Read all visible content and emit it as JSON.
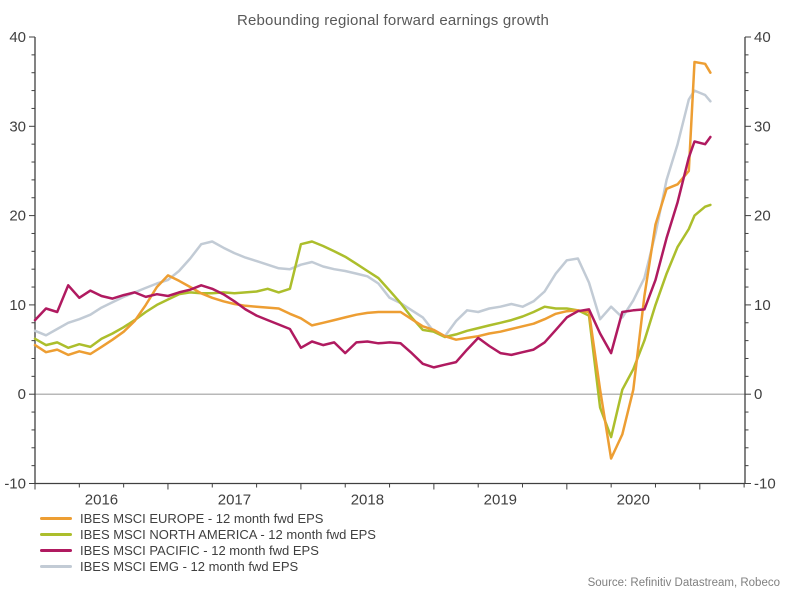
{
  "title": "Rebounding regional forward earnings growth",
  "source": "Source: Refinitiv Datastream, Robeco",
  "axis_color": "#404040",
  "zero_line_color": "#a0a0a0",
  "chart_data": {
    "type": "line",
    "title": "Rebounding regional forward earnings growth",
    "xlabel": "",
    "ylabel": "",
    "x_unit": "decimal_year",
    "xlim": [
      2016.0,
      2021.34
    ],
    "ylim": [
      -10,
      40
    ],
    "yticks": [
      40,
      30,
      20,
      10,
      0,
      -10
    ],
    "y_minor_step": 2,
    "x_minor_step_years": 0.3333,
    "x_year_labels": [
      "2016",
      "2017",
      "2018",
      "2019",
      "2020"
    ],
    "grid": "zero-line-only",
    "legend_position": "bottom-left",
    "axes": "left-right-bottom",
    "draw_order": [
      3,
      1,
      0,
      2
    ],
    "x": [
      2016.0,
      2016.083,
      2016.167,
      2016.25,
      2016.333,
      2016.417,
      2016.5,
      2016.583,
      2016.667,
      2016.75,
      2016.833,
      2016.917,
      2017.0,
      2017.083,
      2017.167,
      2017.25,
      2017.333,
      2017.417,
      2017.5,
      2017.583,
      2017.667,
      2017.75,
      2017.833,
      2017.917,
      2018.0,
      2018.083,
      2018.167,
      2018.25,
      2018.333,
      2018.417,
      2018.5,
      2018.583,
      2018.667,
      2018.75,
      2018.833,
      2018.917,
      2019.0,
      2019.083,
      2019.167,
      2019.25,
      2019.333,
      2019.417,
      2019.5,
      2019.583,
      2019.667,
      2019.75,
      2019.833,
      2019.917,
      2020.0,
      2020.083,
      2020.167,
      2020.25,
      2020.333,
      2020.417,
      2020.5,
      2020.583,
      2020.667,
      2020.75,
      2020.833,
      2020.917,
      2020.96,
      2021.04,
      2021.08
    ],
    "series": [
      {
        "name": "IBES MSCI EUROPE - 12 month fwd EPS",
        "slug": "europe",
        "color": "#ED9E33",
        "values": [
          5.5,
          4.7,
          5.0,
          4.4,
          4.8,
          4.5,
          5.3,
          6.1,
          7.0,
          8.2,
          10.0,
          12.0,
          13.3,
          12.7,
          12.0,
          11.3,
          10.8,
          10.4,
          10.1,
          9.9,
          9.8,
          9.7,
          9.6,
          9.0,
          8.5,
          7.7,
          8.0,
          8.3,
          8.6,
          8.9,
          9.1,
          9.2,
          9.2,
          9.2,
          8.4,
          7.6,
          7.2,
          6.5,
          6.1,
          6.3,
          6.5,
          6.8,
          7.0,
          7.3,
          7.6,
          7.9,
          8.4,
          9.0,
          9.3,
          9.4,
          9.2,
          0.5,
          -7.2,
          -4.5,
          0.5,
          11.0,
          19.0,
          23.0,
          23.5,
          25.0,
          37.2,
          37.0,
          36.0
        ]
      },
      {
        "name": "IBES MSCI NORTH AMERICA - 12 month fwd EPS",
        "slug": "north-america",
        "color": "#ACBE2C",
        "values": [
          6.2,
          5.5,
          5.8,
          5.2,
          5.6,
          5.3,
          6.2,
          6.8,
          7.5,
          8.3,
          9.2,
          10.0,
          10.6,
          11.2,
          11.4,
          11.3,
          11.3,
          11.4,
          11.3,
          11.4,
          11.5,
          11.8,
          11.4,
          11.8,
          16.8,
          17.1,
          16.6,
          16.0,
          15.4,
          14.6,
          13.8,
          13.0,
          11.6,
          10.2,
          8.6,
          7.2,
          7.0,
          6.4,
          6.7,
          7.1,
          7.4,
          7.7,
          8.0,
          8.3,
          8.7,
          9.2,
          9.8,
          9.6,
          9.6,
          9.4,
          8.8,
          -1.5,
          -4.8,
          0.5,
          2.8,
          6.0,
          10.0,
          13.5,
          16.5,
          18.5,
          20.0,
          21.0,
          21.2
        ]
      },
      {
        "name": "IBES MSCI PACIFIC - 12 month fwd EPS",
        "slug": "pacific",
        "color": "#B01A60",
        "values": [
          8.3,
          9.6,
          9.2,
          12.2,
          10.8,
          11.6,
          11.0,
          10.7,
          11.1,
          11.4,
          10.9,
          11.2,
          11.0,
          11.4,
          11.7,
          12.2,
          11.8,
          11.2,
          10.4,
          9.5,
          8.8,
          8.3,
          7.8,
          7.3,
          5.2,
          5.9,
          5.5,
          5.8,
          4.6,
          5.8,
          5.9,
          5.7,
          5.8,
          5.7,
          4.6,
          3.4,
          3.0,
          3.3,
          3.6,
          5.0,
          6.3,
          5.4,
          4.6,
          4.4,
          4.7,
          5.0,
          5.8,
          7.2,
          8.6,
          9.3,
          9.5,
          6.8,
          4.6,
          9.2,
          9.4,
          9.5,
          12.8,
          17.5,
          21.5,
          26.5,
          28.3,
          28.0,
          28.8
        ]
      },
      {
        "name": "IBES MSCI EMG - 12 month fwd EPS",
        "slug": "emg",
        "color": "#C2CBD5",
        "values": [
          7.1,
          6.6,
          7.3,
          8.0,
          8.4,
          8.9,
          9.7,
          10.3,
          10.9,
          11.4,
          11.9,
          12.4,
          12.8,
          13.8,
          15.2,
          16.8,
          17.1,
          16.4,
          15.8,
          15.3,
          14.9,
          14.5,
          14.1,
          14.0,
          14.5,
          14.8,
          14.3,
          14.0,
          13.8,
          13.5,
          13.2,
          12.4,
          10.8,
          10.2,
          9.4,
          8.6,
          7.0,
          6.5,
          8.2,
          9.4,
          9.2,
          9.6,
          9.8,
          10.1,
          9.8,
          10.4,
          11.5,
          13.5,
          15.0,
          15.2,
          12.5,
          8.4,
          9.8,
          8.6,
          10.5,
          13.0,
          18.0,
          24.0,
          28.0,
          33.0,
          34.0,
          33.5,
          32.8
        ]
      }
    ]
  }
}
